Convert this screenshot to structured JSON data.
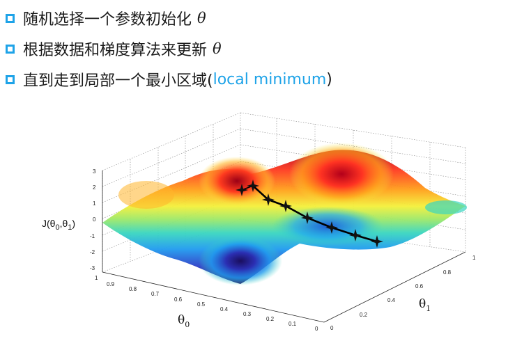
{
  "bullets": [
    {
      "text": "随机选择一个参数初始化",
      "tail_math": "θ",
      "highlight": ""
    },
    {
      "text": "根据数据和梯度算法来更新",
      "tail_math": "θ",
      "highlight": ""
    },
    {
      "text": "直到走到局部一个最小区域(",
      "tail_math": "",
      "highlight": "local minimum",
      "close": ")"
    }
  ],
  "diagram": {
    "z_ticks": [
      "3",
      "2",
      "1",
      "0",
      "-1",
      "-2",
      "-3"
    ],
    "theta0_ticks": [
      "1",
      "0.9",
      "0.8",
      "0.7",
      "0.6",
      "0.5",
      "0.4",
      "0.3",
      "0.2",
      "0.1",
      "0"
    ],
    "theta1_ticks": [
      "0",
      "0.2",
      "0.4",
      "0.6",
      "0.8",
      "1"
    ],
    "ylabel_prefix": "J(θ",
    "ylabel_sub0": "0",
    "ylabel_mid": ",θ",
    "ylabel_sub1": "1",
    "ylabel_suffix": ")",
    "xlabel": "θ",
    "xlabel_sub": "0",
    "x2label": "θ",
    "x2label_sub": "1",
    "colors": {
      "accent": "#1ea3e8"
    }
  }
}
